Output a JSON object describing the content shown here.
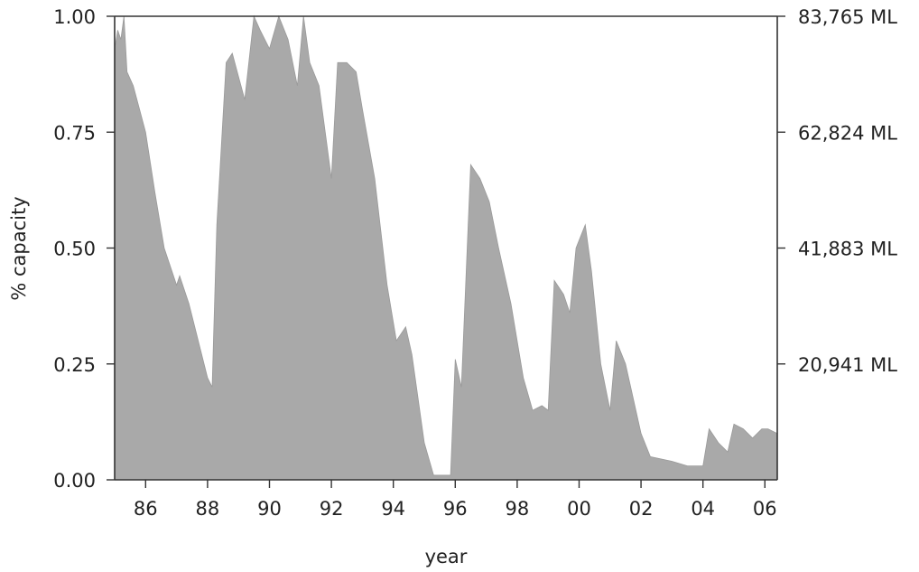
{
  "chart_data": {
    "type": "area",
    "xlabel": "year",
    "ylabel": "% capacity",
    "x_ticks": [
      "86",
      "88",
      "90",
      "92",
      "94",
      "96",
      "98",
      "00",
      "02",
      "04",
      "06"
    ],
    "x_tick_values": [
      1986,
      1988,
      1990,
      1992,
      1994,
      1996,
      1998,
      2000,
      2002,
      2004,
      2006
    ],
    "xlim": [
      1985.0,
      2006.4
    ],
    "ylim": [
      0,
      1
    ],
    "y_ticks": [
      "0.00",
      "0.25",
      "0.50",
      "0.75",
      "1.00"
    ],
    "y_tick_values": [
      0,
      0.25,
      0.5,
      0.75,
      1.0
    ],
    "y2_ticks": [
      "20,941 ML",
      "41,883 ML",
      "62,824 ML",
      "83,765 ML"
    ],
    "y2_tick_values": [
      0.25,
      0.5,
      0.75,
      1.0
    ],
    "grid": false,
    "fill_color": "#a9a9a9",
    "series": [
      {
        "x": [
          1985.0,
          1985.1,
          1985.2,
          1985.3,
          1985.4,
          1985.6,
          1986.0,
          1986.3,
          1986.6,
          1987.0,
          1987.1,
          1987.4,
          1988.0,
          1988.15,
          1988.3,
          1988.6,
          1988.8,
          1989.0,
          1989.2,
          1989.5,
          1989.7,
          1990.0,
          1990.3,
          1990.6,
          1990.9,
          1991.1,
          1991.3,
          1991.6,
          1992.0,
          1992.2,
          1992.5,
          1992.8,
          1993.0,
          1993.4,
          1993.8,
          1994.1,
          1994.4,
          1994.6,
          1995.0,
          1995.3,
          1995.5,
          1995.85,
          1996.0,
          1996.2,
          1996.5,
          1996.8,
          1997.1,
          1997.4,
          1997.8,
          1998.2,
          1998.5,
          1998.8,
          1999.0,
          1999.2,
          1999.5,
          1999.7,
          1999.9,
          2000.2,
          2000.4,
          2000.7,
          2001.0,
          2001.2,
          2001.5,
          2002.0,
          2002.3,
          2003.0,
          2003.5,
          2004.0,
          2004.2,
          2004.5,
          2004.8,
          2005.0,
          2005.3,
          2005.6,
          2005.9,
          2006.1,
          2006.4
        ],
        "y": [
          0.93,
          0.97,
          0.95,
          1.0,
          0.88,
          0.85,
          0.75,
          0.62,
          0.5,
          0.42,
          0.44,
          0.38,
          0.22,
          0.2,
          0.55,
          0.9,
          0.92,
          0.87,
          0.82,
          1.0,
          0.97,
          0.93,
          1.0,
          0.95,
          0.85,
          1.0,
          0.9,
          0.85,
          0.65,
          0.9,
          0.9,
          0.88,
          0.8,
          0.65,
          0.42,
          0.3,
          0.33,
          0.27,
          0.08,
          0.01,
          0.01,
          0.01,
          0.26,
          0.2,
          0.68,
          0.65,
          0.6,
          0.5,
          0.38,
          0.22,
          0.15,
          0.16,
          0.15,
          0.43,
          0.4,
          0.36,
          0.5,
          0.55,
          0.45,
          0.25,
          0.15,
          0.3,
          0.25,
          0.1,
          0.05,
          0.04,
          0.03,
          0.03,
          0.11,
          0.08,
          0.06,
          0.12,
          0.11,
          0.09,
          0.11,
          0.11,
          0.1
        ]
      }
    ]
  }
}
